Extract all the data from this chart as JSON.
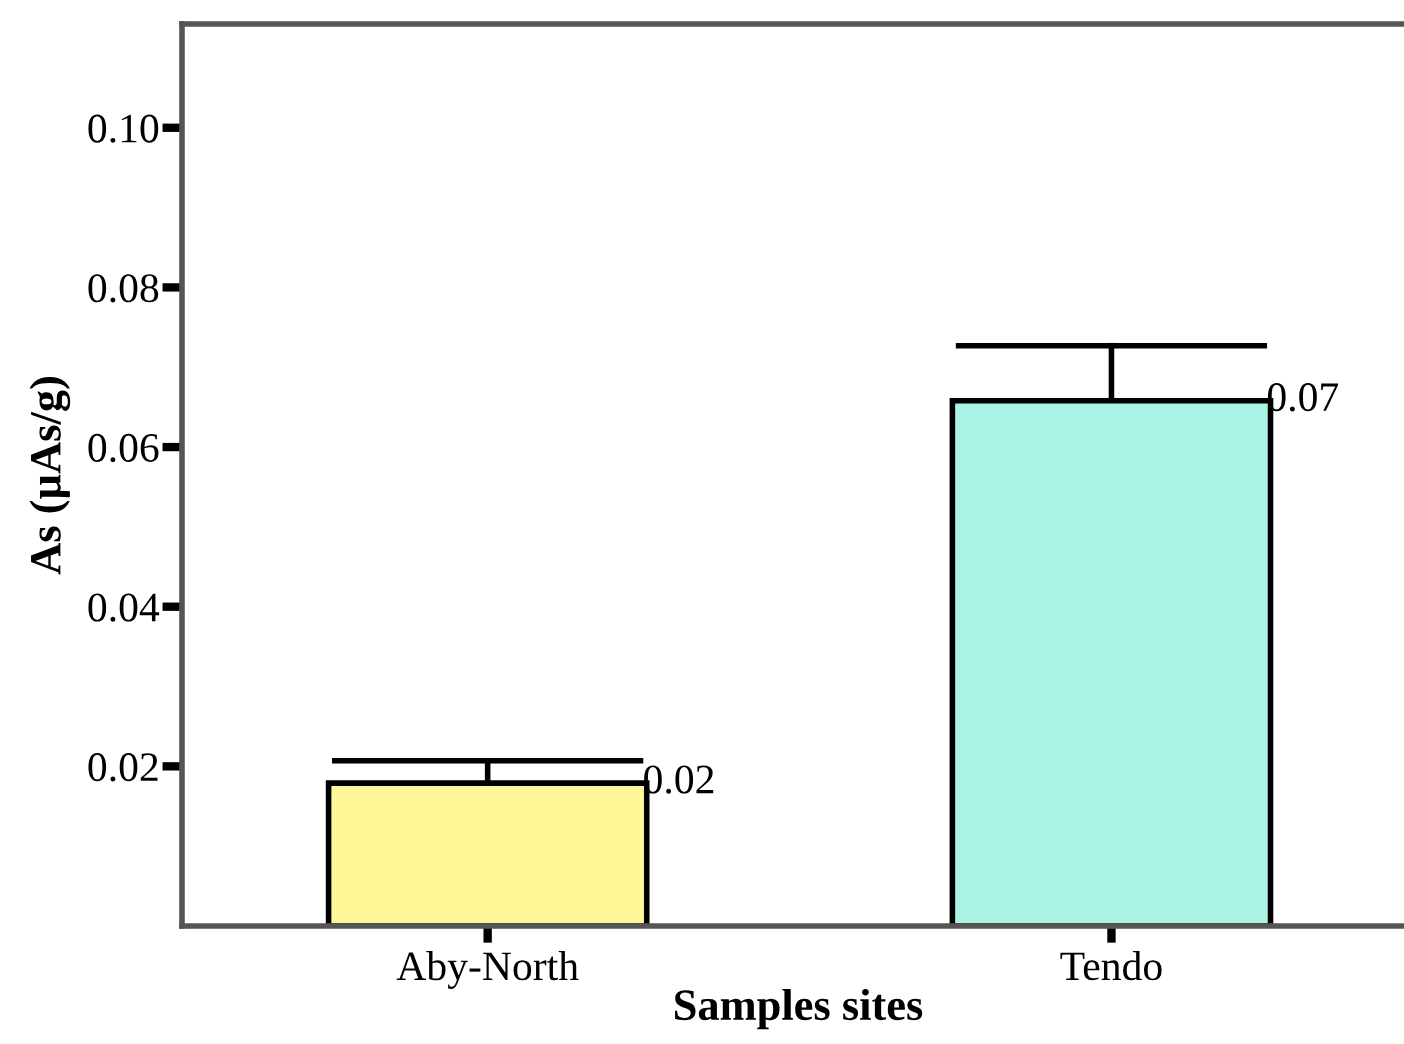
{
  "chart_data": {
    "type": "bar",
    "xlabel": "Samples sites",
    "ylabel": "As (µAs/g)",
    "categories": [
      "Aby-North",
      "Tendo"
    ],
    "values": [
      0.0179,
      0.0658
    ],
    "colors": [
      "#fff899",
      "#aaf2e4"
    ],
    "errors": [
      [
        0.0179,
        0.0207
      ],
      [
        0.0658,
        0.0727
      ]
    ],
    "value_labels": [
      "0.02",
      "0.07"
    ],
    "ylim": [
      0,
      0.113
    ],
    "yticks": [
      {
        "value": 0.02,
        "label": "0.02"
      },
      {
        "value": 0.04,
        "label": "0.04"
      },
      {
        "value": 0.06,
        "label": "0.06"
      },
      {
        "value": 0.08,
        "label": "0.08"
      },
      {
        "value": 0.1,
        "label": "0.10"
      }
    ],
    "grid": false
  }
}
